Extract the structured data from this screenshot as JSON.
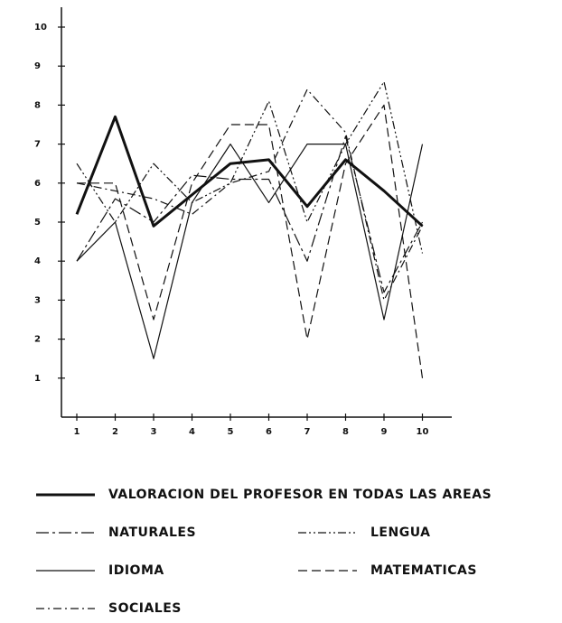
{
  "chart_data": {
    "type": "line",
    "x": [
      1,
      2,
      3,
      4,
      5,
      6,
      7,
      8,
      9,
      10
    ],
    "xlim": [
      0.6,
      10.6
    ],
    "xticks": [
      1,
      2,
      3,
      4,
      5,
      6,
      7,
      8,
      9,
      10
    ],
    "ylim": [
      0,
      10
    ],
    "yticks": [
      1,
      2,
      3,
      4,
      5,
      6,
      7,
      8,
      9,
      10
    ],
    "series": [
      {
        "name": "VALORACION DEL PROFESOR EN TODAS LAS AREAS",
        "color": "#111111",
        "style": "thick",
        "values": [
          5.2,
          7.7,
          4.9,
          5.7,
          6.5,
          6.6,
          5.4,
          6.6,
          5.8,
          4.9
        ]
      },
      {
        "name": "NATURALES",
        "color": "#111111",
        "style": "long-dash-dot",
        "values": [
          4.0,
          5.6,
          5.0,
          6.2,
          6.1,
          6.1,
          4.0,
          7.2,
          3.2,
          5.0
        ]
      },
      {
        "name": "LENGUA",
        "color": "#111111",
        "style": "dash-dot-dot",
        "values": [
          6.5,
          5.0,
          6.5,
          5.5,
          6.0,
          8.1,
          5.0,
          7.0,
          8.6,
          4.2
        ]
      },
      {
        "name": "IDIOMA",
        "color": "#111111",
        "style": "solid",
        "values": [
          4.0,
          5.0,
          1.5,
          5.5,
          7.0,
          5.5,
          7.0,
          7.0,
          2.5,
          7.0
        ]
      },
      {
        "name": "MATEMATICAS",
        "color": "#111111",
        "style": "dashed",
        "values": [
          6.0,
          6.0,
          2.5,
          6.0,
          7.5,
          7.5,
          2.0,
          6.5,
          8.0,
          1.0
        ]
      },
      {
        "name": "SOCIALES",
        "color": "#111111",
        "style": "dash-dot",
        "values": [
          6.0,
          5.8,
          5.6,
          5.2,
          6.0,
          6.3,
          8.4,
          7.3,
          3.0,
          4.9
        ]
      }
    ]
  }
}
